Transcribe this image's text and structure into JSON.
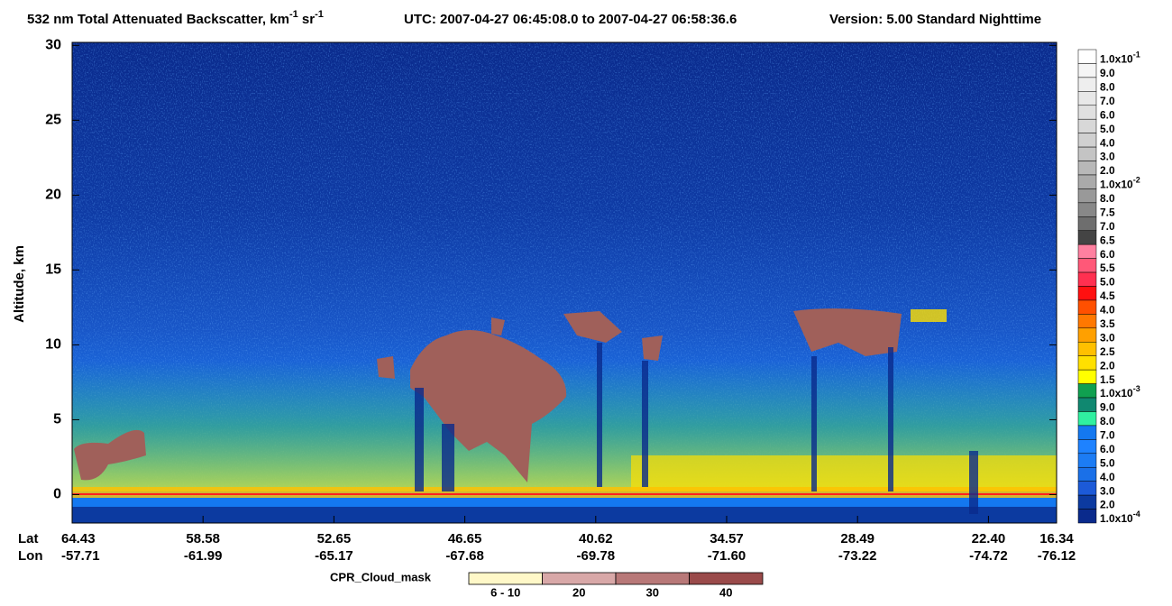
{
  "chart_data": {
    "type": "curtain",
    "title": {
      "text": "532 nm Total Attenuated Backscatter, km",
      "sup1": "-1",
      "mid": " sr",
      "sup2": "-1"
    },
    "time_range": "UTC:  2007-04-27 06:45:08.0  to  2007-04-27 06:58:36.6",
    "version": "Version: 5.00  Standard  Nighttime",
    "y_label": "Altitude, km",
    "ylim": [
      -1.9,
      30.2
    ],
    "yticks": [
      0,
      5,
      10,
      15,
      20,
      25,
      30
    ],
    "x_row_labels": [
      "Lat",
      "Lon"
    ],
    "lat": [
      "64.43",
      "58.58",
      "52.65",
      "46.65",
      "40.62",
      "34.57",
      "28.49",
      "22.40",
      "16.34"
    ],
    "lon": [
      "-57.71",
      "-61.99",
      "-65.17",
      "-67.68",
      "-69.78",
      "-71.60",
      "-73.22",
      "-74.72",
      "-76.12"
    ],
    "colorbar": {
      "labels": [
        {
          "text": "1.0x10",
          "sup": "-1"
        },
        "9.0",
        "8.0",
        "7.0",
        "6.0",
        "5.0",
        "4.0",
        "3.0",
        "2.0",
        {
          "text": "1.0x10",
          "sup": "-2"
        },
        "8.0",
        "7.5",
        "7.0",
        "6.5",
        "6.0",
        "5.5",
        "5.0",
        "4.5",
        "4.0",
        "3.5",
        "3.0",
        "2.5",
        "2.0",
        "1.5",
        {
          "text": "1.0x10",
          "sup": "-3"
        },
        "9.0",
        "8.0",
        "7.0",
        "6.0",
        "5.0",
        "4.0",
        "3.0",
        "2.0",
        {
          "text": "1.0x10",
          "sup": "-4"
        }
      ],
      "colors": [
        "#ffffff",
        "#f5f5f5",
        "#eeeeee",
        "#e8e8e8",
        "#e0e0e0",
        "#d8d8d8",
        "#d0d0d0",
        "#c4c4c4",
        "#b8b8b8",
        "#aaaaaa",
        "#999999",
        "#888888",
        "#6e6e6e",
        "#444444",
        "#ff80a0",
        "#ff5878",
        "#ff3050",
        "#ff1010",
        "#ff5000",
        "#ff7800",
        "#ffa000",
        "#ffc000",
        "#ffe000",
        "#ffff00",
        "#10a050",
        "#108870",
        "#30f0a0",
        "#1478f0",
        "#1e82ff",
        "#1c7cf4",
        "#1a70e8",
        "#1c5ad8",
        "#0c3aa0",
        "#0a2a8c"
      ]
    },
    "cpr_legend": {
      "title": "CPR_Cloud_mask",
      "labels": [
        "6 - 10",
        "20",
        "30",
        "40"
      ],
      "colors": [
        "#fff8c8",
        "#d8a8a8",
        "#b87878",
        "#9a4a4a"
      ]
    }
  }
}
